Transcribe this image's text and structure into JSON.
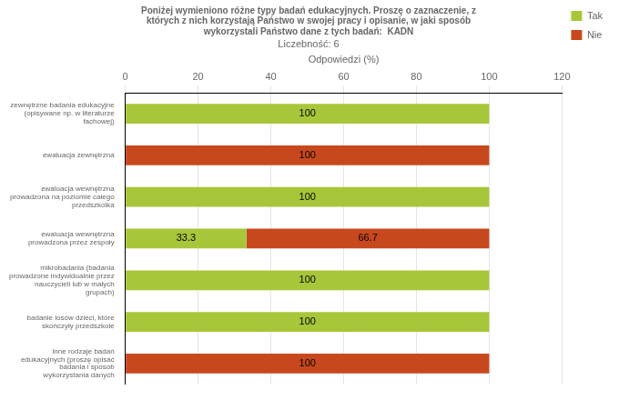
{
  "chart_data": {
    "type": "bar",
    "orientation": "horizontal",
    "stacked": true,
    "title": "Poniżej wymieniono różne typy badań edukacyjnych. Proszę o zaznaczenie, z\nktórych z nich korzystają Państwo w swojej pracy i opisanie, w jaki sposób\nwykorzystali Państwo dane z tych badań:  KADN",
    "subtitle": "Liczebność: 6",
    "xlabel": "Odpowiedzi (%)",
    "categories": [
      "zewnętrzne badania edukacyjne\n(opisywane np. w literaturze\nfachowej)",
      "ewaluacja zewnętrzna",
      "ewaluacja wewnętrzna\nprowadzona na poziomie całego\nprzedszkolka",
      "ewaluacja wewnętrzna\nprowadzona przez zespoły",
      "mikrobadania (badania\nprowadzone indywidualnie przez\nnauczycieli lub w małych\ngrupach)",
      "badanie losów dzieci, które\nskończyły przedszkole",
      "inne rodzaje badań\nedukacyjnych (proszę opisać\nbadania i sposób\nwykorzystania danych"
    ],
    "series": [
      {
        "name": "Tak",
        "color": "#a8c639",
        "values": [
          100,
          0,
          100,
          33.3,
          100,
          100,
          0
        ]
      },
      {
        "name": "Nie",
        "color": "#c8481e",
        "values": [
          0,
          100,
          0,
          66.7,
          0,
          0,
          100
        ]
      }
    ],
    "xlim": [
      0,
      120
    ],
    "xticks": [
      0,
      20,
      40,
      60,
      80,
      100,
      120
    ],
    "grid": true,
    "legend": "right",
    "data_labels": true
  }
}
